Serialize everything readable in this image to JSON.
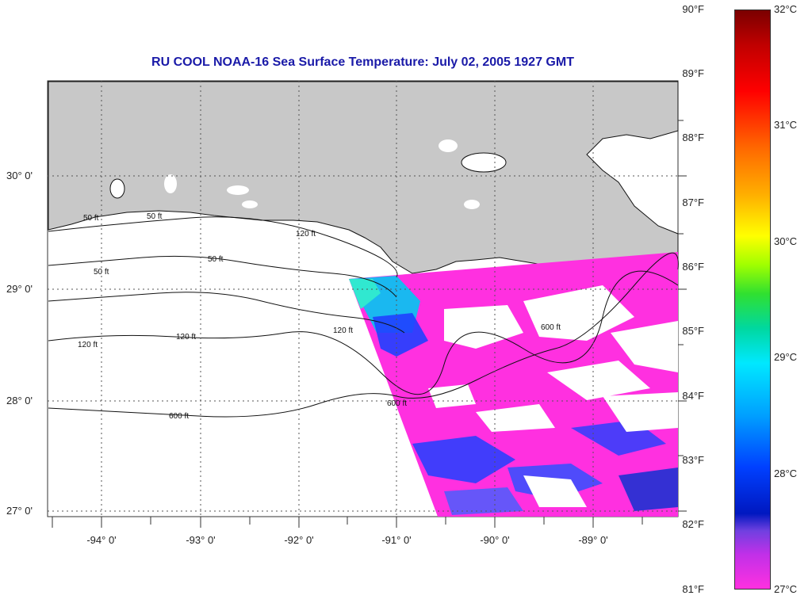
{
  "title": "RU COOL  NOAA-16  Sea Surface Temperature:  July 02, 2005 1927 GMT",
  "lat_labels": [
    "30° 0'",
    "29° 0'",
    "28° 0'",
    "27° 0'"
  ],
  "lon_labels": [
    "-94° 0'",
    "-93° 0'",
    "-92° 0'",
    "-91° 0'",
    "-90° 0'",
    "-89° 0'"
  ],
  "isobath_labels": [
    "50 ft",
    "120 ft",
    "600 ft"
  ],
  "colorbar": {
    "fahrenheit": [
      "90°F",
      "89°F",
      "88°F",
      "87°F",
      "86°F",
      "85°F",
      "84°F",
      "83°F",
      "82°F",
      "81°F"
    ],
    "celsius": [
      "32°C",
      "31°C",
      "30°C",
      "29°C",
      "28°C",
      "27°C"
    ]
  },
  "colors": {
    "land": "#c8c8c8",
    "title": "#1a1aa8",
    "warm_sst": "#ff30e0",
    "cool_sst": "#2040ff"
  }
}
